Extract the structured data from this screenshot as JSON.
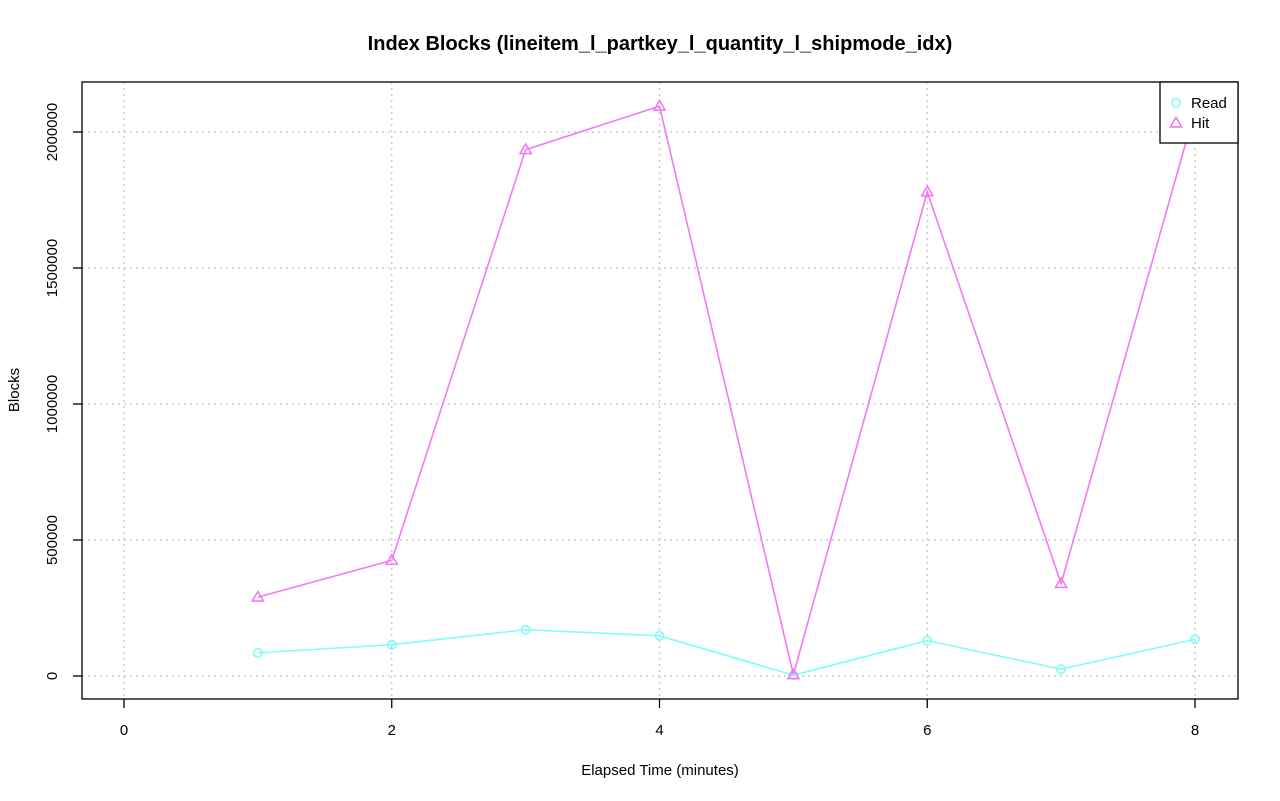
{
  "chart_data": {
    "type": "line",
    "title": "Index Blocks (lineitem_l_partkey_l_quantity_l_shipmode_idx)",
    "xlabel": "Elapsed Time (minutes)",
    "ylabel": "Blocks",
    "xlim": [
      0,
      8
    ],
    "ylim": [
      0,
      2000000
    ],
    "x_ticks": [
      0,
      2,
      4,
      6,
      8
    ],
    "y_ticks": [
      0,
      500000,
      1000000,
      1500000,
      2000000
    ],
    "x_tick_labels": [
      "0",
      "2",
      "4",
      "6",
      "8"
    ],
    "y_tick_labels": [
      "0",
      "500000",
      "1000000",
      "1500000",
      "2000000"
    ],
    "grid": true,
    "legend_position": "top-right",
    "x": [
      1,
      2,
      3,
      4,
      5,
      6,
      7,
      8
    ],
    "series": [
      {
        "name": "Read",
        "marker": "circle",
        "color": "#7ffcfc",
        "values": [
          85000,
          115000,
          170000,
          148000,
          3000,
          130000,
          25000,
          135000
        ]
      },
      {
        "name": "Hit",
        "marker": "triangle",
        "color": "#f07cf2",
        "values": [
          290000,
          425000,
          1935000,
          2095000,
          5000,
          1780000,
          340000,
          2080000
        ]
      }
    ]
  }
}
